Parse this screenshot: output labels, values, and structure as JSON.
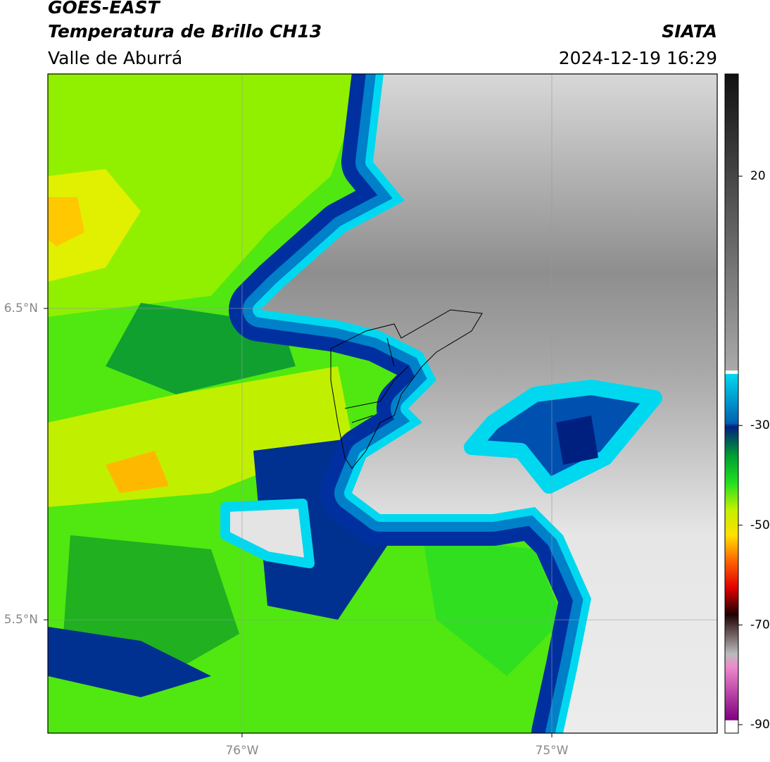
{
  "header": {
    "title": "GOES-EAST",
    "subtitle": "Temperatura de Brillo CH13",
    "region": "Valle de Aburrá",
    "source": "SIATA",
    "datetime": "2024-12-19 16:29"
  },
  "map": {
    "latlim": [
      5.136,
      7.253
    ],
    "lonlim": [
      -76.627,
      -74.466
    ],
    "latticks": [
      {
        "value": 6.5,
        "label": "6.5°N"
      },
      {
        "value": 5.5,
        "label": "5.5°N"
      }
    ],
    "lonticks": [
      {
        "value": -76,
        "label": "76°W"
      },
      {
        "value": -75,
        "label": "75°W"
      }
    ],
    "grid": true
  },
  "colorbar": {
    "clim": [
      -91.7,
      40.5
    ],
    "ticks": [
      20,
      -30,
      -50,
      -70,
      -90
    ]
  }
}
